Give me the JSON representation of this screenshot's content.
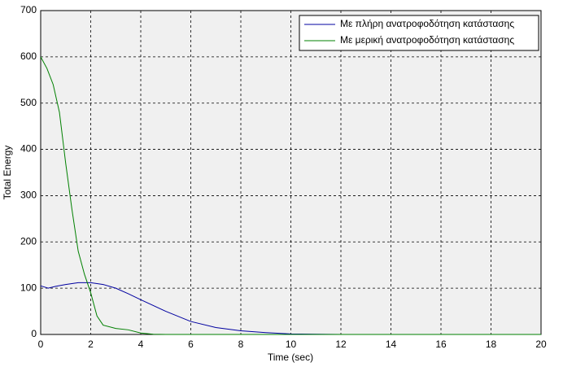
{
  "chart_data": {
    "type": "line",
    "xlabel": "Time (sec)",
    "ylabel": "Total Energy",
    "xlim": [
      0,
      20
    ],
    "ylim": [
      0,
      700
    ],
    "xticks": [
      0,
      2,
      4,
      6,
      8,
      10,
      12,
      14,
      16,
      18,
      20
    ],
    "yticks": [
      0,
      100,
      200,
      300,
      400,
      500,
      600,
      700
    ],
    "grid": true,
    "legend": "upper right",
    "series": [
      {
        "name": "Με πλήρη ανατροφοδότηση κατάστασης",
        "color": "#0000a0",
        "x": [
          0,
          0.3,
          0.6,
          1,
          1.5,
          2,
          2.5,
          3,
          3.5,
          4,
          5,
          6,
          7,
          8,
          9,
          10,
          12,
          20
        ],
        "values": [
          105,
          100,
          104,
          108,
          112,
          112,
          108,
          100,
          88,
          75,
          50,
          28,
          15,
          8,
          4,
          1,
          0,
          0
        ]
      },
      {
        "name": "Με μερική ανατροφοδότηση κατάστασης",
        "color": "#008000",
        "x": [
          0,
          0.25,
          0.5,
          0.75,
          1,
          1.25,
          1.5,
          1.75,
          2,
          2.25,
          2.5,
          3,
          3.5,
          4,
          4.5,
          5,
          20
        ],
        "values": [
          600,
          575,
          540,
          480,
          370,
          270,
          180,
          130,
          90,
          40,
          20,
          13,
          10,
          3,
          0.5,
          0,
          0
        ]
      }
    ]
  }
}
